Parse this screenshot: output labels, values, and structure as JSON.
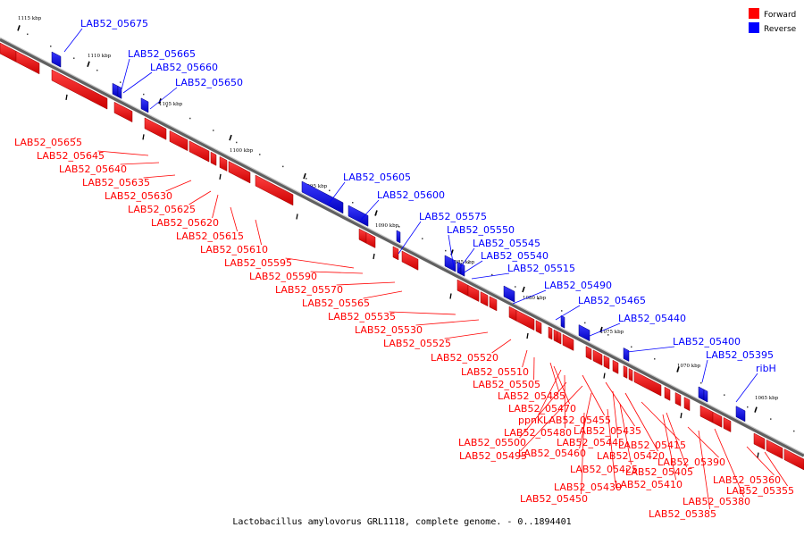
{
  "legend": {
    "items": [
      {
        "label": "Forward",
        "color": "#ff0000"
      },
      {
        "label": "Reverse",
        "color": "#0000ff"
      }
    ]
  },
  "caption": "Lactobacillus amylovorus GRL1118, complete genome. - 0..1894401",
  "colors": {
    "forward": "#ff0000",
    "reverse": "#0000ff",
    "backbone": "#808080"
  },
  "tick_labels": [
    "1115 kbp",
    "1110 kbp",
    "1105 kbp",
    "1100 kbp",
    "1095 kbp",
    "1090 kbp",
    "1085 kbp",
    "1080 kbp",
    "1075 kbp",
    "1070 kbp",
    "1065 kbp"
  ],
  "forward_genes": [
    "LAB52_05655",
    "LAB52_05645",
    "LAB52_05640",
    "LAB52_05635",
    "LAB52_05630",
    "LAB52_05625",
    "LAB52_05620",
    "LAB52_05615",
    "LAB52_05610",
    "LAB52_05595",
    "LAB52_05590",
    "LAB52_05570",
    "LAB52_05565",
    "LAB52_05535",
    "LAB52_05530",
    "LAB52_05525",
    "LAB52_05520",
    "LAB52_05510",
    "LAB52_05505",
    "LAB52_05485",
    "LAB52_05470",
    "ppnK",
    "LAB52_05480",
    "LAB52_05455",
    "LAB52_05500",
    "LAB52_05435",
    "LAB52_05495",
    "LAB52_05445",
    "LAB52_05460",
    "LAB52_05420",
    "LAB52_05415",
    "LAB52_05425",
    "LAB52_05430",
    "LAB52_05450",
    "LAB52_05405",
    "LAB52_05410",
    "LAB52_05390",
    "LAB52_05360",
    "LAB52_05355",
    "LAB52_05380",
    "LAB52_05385"
  ],
  "reverse_genes": [
    "LAB52_05675",
    "LAB52_05665",
    "LAB52_05660",
    "LAB52_05650",
    "LAB52_05605",
    "LAB52_05600",
    "LAB52_05575",
    "LAB52_05550",
    "LAB52_05545",
    "LAB52_05540",
    "LAB52_05515",
    "LAB52_05490",
    "LAB52_05465",
    "LAB52_05440",
    "LAB52_05400",
    "LAB52_05395",
    "ribH"
  ]
}
